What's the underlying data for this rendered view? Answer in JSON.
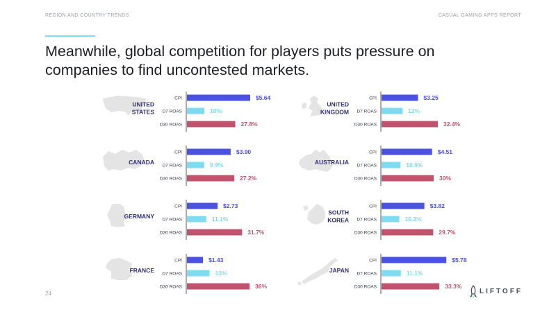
{
  "header": {
    "section": "REGION AND COUNTRY TRENDS",
    "report": "CASUAL GAMING APPS REPORT"
  },
  "headline": "Meanwhile, global competition for players puts pressure on companies to find uncontested markets.",
  "page_number": "24",
  "logo": {
    "text": "LIFTOFF",
    "icon": "rocket-icon"
  },
  "colors": {
    "cpi": "#4b51e0",
    "d7_roas": "#7fdcf0",
    "d30_roas": "#c2536f",
    "country_label": "#2d3079",
    "map": "#e4e4e4"
  },
  "chart_data": [
    {
      "type": "bar",
      "country": "UNITED STATES",
      "categories": [
        "CPI",
        "D7 ROAS",
        "D30 ROAS"
      ],
      "values": [
        5.64,
        10,
        27.8
      ],
      "labels": [
        "$5.64",
        "10%",
        "27.8%"
      ]
    },
    {
      "type": "bar",
      "country": "UNITED KINGDOM",
      "categories": [
        "CPI",
        "D7 ROAS",
        "D30 ROAS"
      ],
      "values": [
        3.25,
        12,
        32.4
      ],
      "labels": [
        "$3.25",
        "12%",
        "32.4%"
      ]
    },
    {
      "type": "bar",
      "country": "CANADA",
      "categories": [
        "CPI",
        "D7 ROAS",
        "D30 ROAS"
      ],
      "values": [
        3.9,
        9.9,
        27.2
      ],
      "labels": [
        "$3.90",
        "9.9%",
        "27.2%"
      ]
    },
    {
      "type": "bar",
      "country": "AUSTRALIA",
      "categories": [
        "CPI",
        "D7 ROAS",
        "D30 ROAS"
      ],
      "values": [
        4.51,
        10.9,
        30
      ],
      "labels": [
        "$4.51",
        "10.9%",
        "30%"
      ]
    },
    {
      "type": "bar",
      "country": "GERMANY",
      "categories": [
        "CPI",
        "D7 ROAS",
        "D30 ROAS"
      ],
      "values": [
        2.73,
        11.1,
        31.7
      ],
      "labels": [
        "$2.73",
        "11.1%",
        "31.7%"
      ]
    },
    {
      "type": "bar",
      "country": "SOUTH KOREA",
      "categories": [
        "CPI",
        "D7 ROAS",
        "D30 ROAS"
      ],
      "values": [
        3.82,
        10.2,
        29.7
      ],
      "labels": [
        "$3.82",
        "10.2%",
        "29.7%"
      ]
    },
    {
      "type": "bar",
      "country": "FRANCE",
      "categories": [
        "CPI",
        "D7 ROAS",
        "D30 ROAS"
      ],
      "values": [
        1.43,
        13,
        36
      ],
      "labels": [
        "$1.43",
        "13%",
        "36%"
      ]
    },
    {
      "type": "bar",
      "country": "JAPAN",
      "categories": [
        "CPI",
        "D7 ROAS",
        "D30 ROAS"
      ],
      "values": [
        5.78,
        11.1,
        33.3
      ],
      "labels": [
        "$5.78",
        "11.1%",
        "33.3%"
      ]
    }
  ]
}
